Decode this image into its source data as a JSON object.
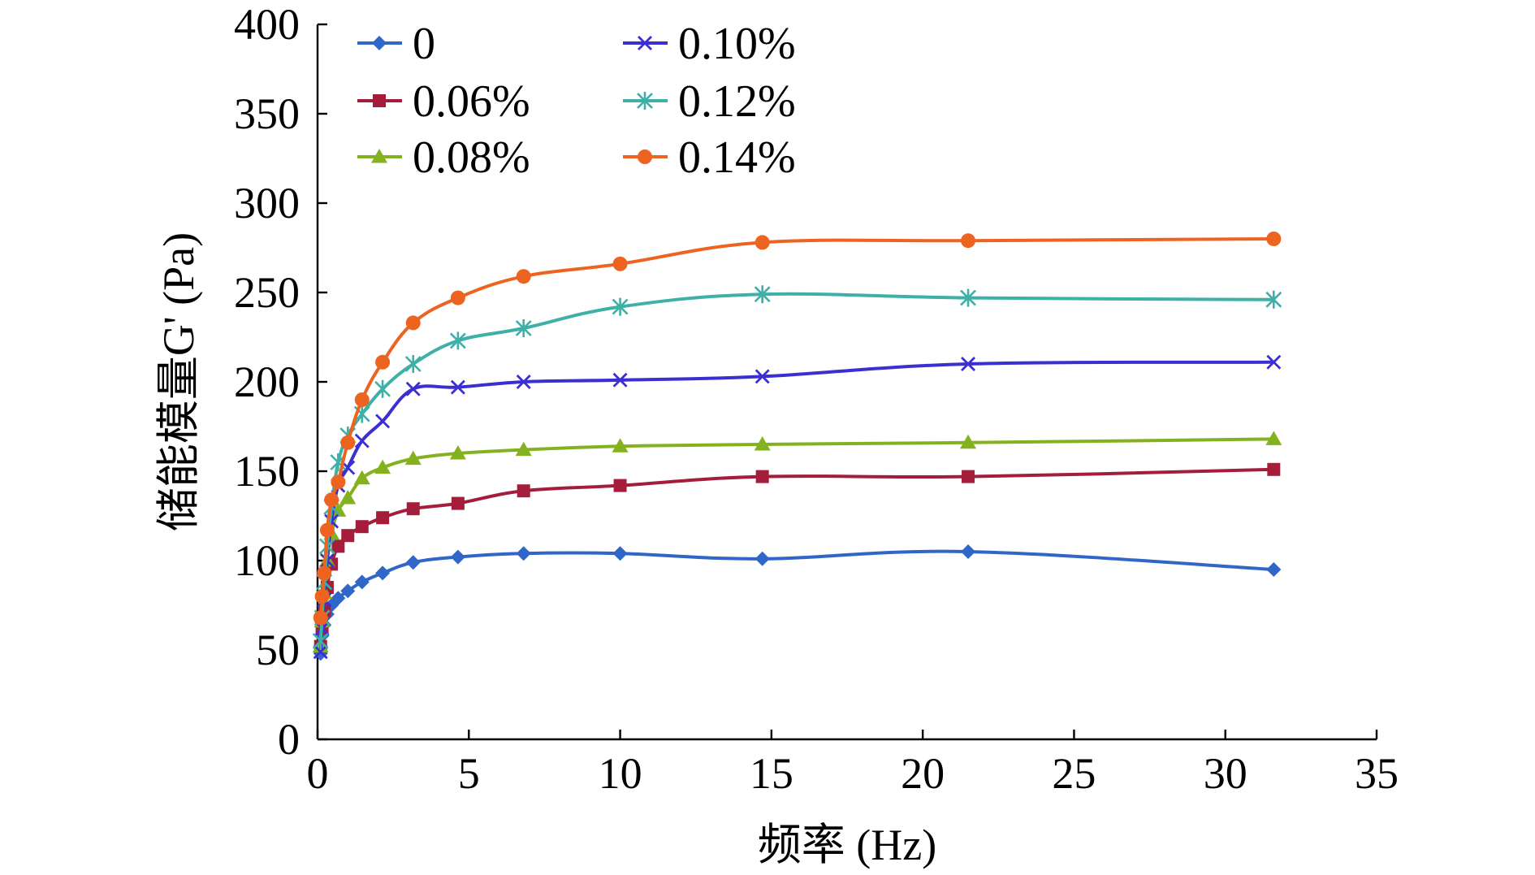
{
  "chart_data": {
    "type": "line",
    "title": "",
    "xlabel": "频率 (Hz)",
    "ylabel": "储能模量G' (Pa)",
    "xlim": [
      0,
      35
    ],
    "ylim": [
      0,
      400
    ],
    "x_ticks": [
      0,
      5,
      10,
      15,
      20,
      25,
      30,
      35
    ],
    "y_ticks": [
      0,
      50,
      100,
      150,
      200,
      250,
      300,
      350,
      400
    ],
    "grid": false,
    "legend_position": "top-left",
    "x": [
      0.1,
      0.15,
      0.22,
      0.32,
      0.46,
      0.68,
      1.0,
      1.47,
      2.15,
      3.16,
      4.64,
      6.81,
      10.0,
      14.7,
      21.5,
      31.6
    ],
    "series": [
      {
        "name": "0",
        "color": "#2f66c8",
        "marker": "diamond",
        "values": [
          48,
          58,
          64,
          70,
          75,
          79,
          83,
          88,
          93,
          99,
          102,
          104,
          104,
          101,
          105,
          95
        ]
      },
      {
        "name": "0.06%",
        "color": "#a41e3c",
        "marker": "square",
        "values": [
          52,
          62,
          72,
          85,
          98,
          108,
          114,
          119,
          124,
          129,
          132,
          139,
          142,
          147,
          147,
          151
        ]
      },
      {
        "name": "0.08%",
        "color": "#84b21f",
        "marker": "triangle",
        "values": [
          52,
          66,
          82,
          100,
          115,
          128,
          135,
          146,
          152,
          157,
          160,
          162,
          164,
          165,
          166,
          168
        ]
      },
      {
        "name": "0.10%",
        "color": "#3a2fd2",
        "marker": "x",
        "values": [
          49,
          62,
          78,
          100,
          122,
          142,
          152,
          167,
          178,
          196,
          197,
          200,
          201,
          203,
          210,
          211
        ]
      },
      {
        "name": "0.12%",
        "color": "#3db0a8",
        "marker": "asterisk",
        "values": [
          55,
          68,
          88,
          108,
          130,
          155,
          170,
          182,
          196,
          210,
          223,
          230,
          242,
          249,
          247,
          246
        ]
      },
      {
        "name": "0.14%",
        "color": "#ec6420",
        "marker": "circle",
        "values": [
          68,
          80,
          93,
          117,
          134,
          144,
          166,
          190,
          211,
          233,
          247,
          259,
          266,
          278,
          279,
          280
        ]
      }
    ]
  }
}
